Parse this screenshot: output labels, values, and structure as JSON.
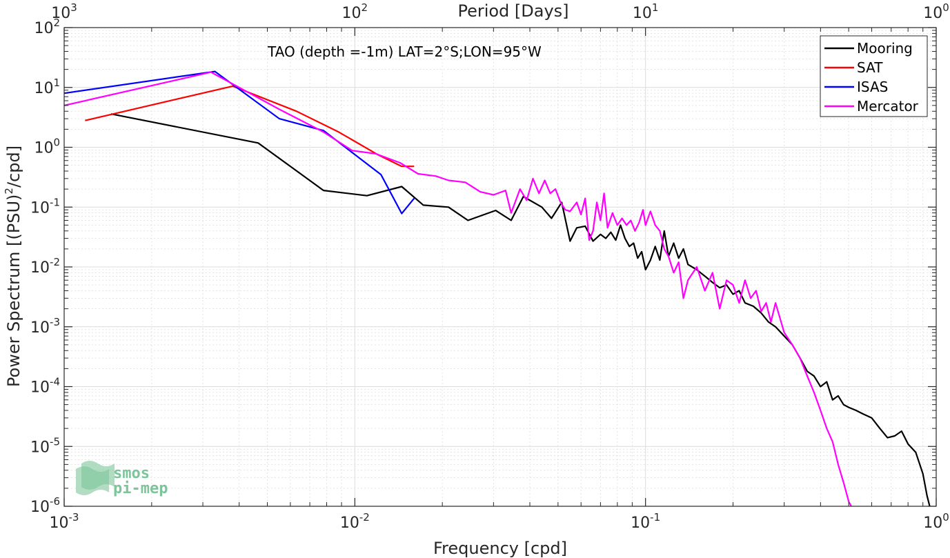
{
  "chart_data": {
    "type": "line",
    "x_scale": "log",
    "y_scale": "log",
    "xlim": [
      0.001,
      1
    ],
    "ylim": [
      1e-06,
      100
    ],
    "grid": true,
    "xlabel": "Frequency [cpd]",
    "ylabel": "Power Spectrum [(PSU)",
    "ylabel_sup": "2",
    "ylabel_tail": "/cpd]",
    "top_axis_label": "Period [Days]",
    "annotation": "TAO (depth =-1m) LAT=2°S;LON=95°W",
    "legend_position": "top-right",
    "x_ticks": [
      {
        "value": 0.001,
        "base": "10",
        "exp": "-3"
      },
      {
        "value": 0.01,
        "base": "10",
        "exp": "-2"
      },
      {
        "value": 0.1,
        "base": "10",
        "exp": "-1"
      },
      {
        "value": 1,
        "base": "10",
        "exp": "0"
      }
    ],
    "y_ticks": [
      {
        "value": 1e-06,
        "base": "10",
        "exp": "-6"
      },
      {
        "value": 1e-05,
        "base": "10",
        "exp": "-5"
      },
      {
        "value": 0.0001,
        "base": "10",
        "exp": "-4"
      },
      {
        "value": 0.001,
        "base": "10",
        "exp": "-3"
      },
      {
        "value": 0.01,
        "base": "10",
        "exp": "-2"
      },
      {
        "value": 0.1,
        "base": "10",
        "exp": "-1"
      },
      {
        "value": 1,
        "base": "10",
        "exp": "0"
      },
      {
        "value": 10,
        "base": "10",
        "exp": "1"
      },
      {
        "value": 100,
        "base": "10",
        "exp": "2"
      }
    ],
    "top_ticks": [
      {
        "value": 0.001,
        "base": "10",
        "exp": "3"
      },
      {
        "value": 0.01,
        "base": "10",
        "exp": "2"
      },
      {
        "value": 0.1,
        "base": "10",
        "exp": "1"
      },
      {
        "value": 1,
        "base": "10",
        "exp": "0"
      }
    ],
    "series": [
      {
        "name": "Mooring",
        "color": "#000000",
        "points": [
          [
            0.00145,
            3.6
          ],
          [
            0.00465,
            1.18
          ],
          [
            0.0078,
            0.19
          ],
          [
            0.011,
            0.155
          ],
          [
            0.0145,
            0.22
          ],
          [
            0.0172,
            0.108
          ],
          [
            0.021,
            0.1
          ],
          [
            0.0245,
            0.06
          ],
          [
            0.0305,
            0.088
          ],
          [
            0.0345,
            0.06
          ],
          [
            0.038,
            0.15
          ],
          [
            0.044,
            0.1
          ],
          [
            0.0475,
            0.065
          ],
          [
            0.0515,
            0.12
          ],
          [
            0.055,
            0.027
          ],
          [
            0.058,
            0.045
          ],
          [
            0.062,
            0.048
          ],
          [
            0.066,
            0.027
          ],
          [
            0.07,
            0.035
          ],
          [
            0.073,
            0.03
          ],
          [
            0.076,
            0.038
          ],
          [
            0.079,
            0.028
          ],
          [
            0.082,
            0.05
          ],
          [
            0.085,
            0.03
          ],
          [
            0.088,
            0.022
          ],
          [
            0.091,
            0.025
          ],
          [
            0.094,
            0.014
          ],
          [
            0.097,
            0.018
          ],
          [
            0.1,
            0.009
          ],
          [
            0.104,
            0.013
          ],
          [
            0.108,
            0.022
          ],
          [
            0.112,
            0.013
          ],
          [
            0.116,
            0.04
          ],
          [
            0.12,
            0.015
          ],
          [
            0.125,
            0.025
          ],
          [
            0.13,
            0.014
          ],
          [
            0.135,
            0.02
          ],
          [
            0.14,
            0.011
          ],
          [
            0.15,
            0.009
          ],
          [
            0.16,
            0.007
          ],
          [
            0.17,
            0.0055
          ],
          [
            0.18,
            0.0045
          ],
          [
            0.19,
            0.005
          ],
          [
            0.2,
            0.0035
          ],
          [
            0.21,
            0.004
          ],
          [
            0.22,
            0.0025
          ],
          [
            0.235,
            0.0022
          ],
          [
            0.25,
            0.0017
          ],
          [
            0.265,
            0.0012
          ],
          [
            0.28,
            0.001
          ],
          [
            0.3,
            0.0007
          ],
          [
            0.32,
            0.0005
          ],
          [
            0.34,
            0.0003
          ],
          [
            0.36,
            0.00018
          ],
          [
            0.38,
            0.00015
          ],
          [
            0.4,
            0.0001
          ],
          [
            0.42,
            0.00012
          ],
          [
            0.44,
            6e-05
          ],
          [
            0.46,
            7e-05
          ],
          [
            0.48,
            5e-05
          ],
          [
            0.5,
            4.5e-05
          ],
          [
            0.53,
            4e-05
          ],
          [
            0.56,
            3.5e-05
          ],
          [
            0.6,
            3e-05
          ],
          [
            0.64,
            2e-05
          ],
          [
            0.68,
            1.4e-05
          ],
          [
            0.72,
            1.5e-05
          ],
          [
            0.76,
            1.8e-05
          ],
          [
            0.8,
            1.1e-05
          ],
          [
            0.85,
            8e-06
          ],
          [
            0.9,
            3.5e-06
          ],
          [
            0.93,
            1.5e-06
          ],
          [
            0.95,
            1e-06
          ]
        ]
      },
      {
        "name": "SAT",
        "color": "#ff0000",
        "points": [
          [
            0.00118,
            2.8
          ],
          [
            0.0038,
            10.5
          ],
          [
            0.0063,
            4.0
          ],
          [
            0.0088,
            1.8
          ],
          [
            0.012,
            0.75
          ],
          [
            0.0145,
            0.48
          ],
          [
            0.016,
            0.48
          ]
        ]
      },
      {
        "name": "ISAS",
        "color": "#0000ff",
        "points": [
          [
            0.001,
            8.0
          ],
          [
            0.0033,
            18.5
          ],
          [
            0.0055,
            3.0
          ],
          [
            0.0078,
            1.9
          ],
          [
            0.0123,
            0.35
          ],
          [
            0.0145,
            0.078
          ],
          [
            0.016,
            0.14
          ]
        ]
      },
      {
        "name": "Mercator",
        "color": "#ff00ff",
        "points": [
          [
            0.001,
            5.0
          ],
          [
            0.0032,
            18.0
          ],
          [
            0.0055,
            4.3
          ],
          [
            0.0078,
            1.8
          ],
          [
            0.0098,
            0.88
          ],
          [
            0.0118,
            0.78
          ],
          [
            0.0143,
            0.55
          ],
          [
            0.0165,
            0.36
          ],
          [
            0.019,
            0.33
          ],
          [
            0.021,
            0.28
          ],
          [
            0.024,
            0.26
          ],
          [
            0.027,
            0.18
          ],
          [
            0.03,
            0.16
          ],
          [
            0.033,
            0.19
          ],
          [
            0.0345,
            0.08
          ],
          [
            0.037,
            0.2
          ],
          [
            0.039,
            0.13
          ],
          [
            0.041,
            0.3
          ],
          [
            0.043,
            0.17
          ],
          [
            0.045,
            0.28
          ],
          [
            0.047,
            0.17
          ],
          [
            0.049,
            0.2
          ],
          [
            0.051,
            0.12
          ],
          [
            0.053,
            0.09
          ],
          [
            0.055,
            0.085
          ],
          [
            0.058,
            0.12
          ],
          [
            0.06,
            0.075
          ],
          [
            0.062,
            0.14
          ],
          [
            0.064,
            0.028
          ],
          [
            0.066,
            0.04
          ],
          [
            0.068,
            0.12
          ],
          [
            0.07,
            0.06
          ],
          [
            0.072,
            0.17
          ],
          [
            0.074,
            0.045
          ],
          [
            0.077,
            0.08
          ],
          [
            0.08,
            0.05
          ],
          [
            0.083,
            0.065
          ],
          [
            0.086,
            0.05
          ],
          [
            0.089,
            0.06
          ],
          [
            0.092,
            0.04
          ],
          [
            0.095,
            0.055
          ],
          [
            0.098,
            0.09
          ],
          [
            0.1,
            0.05
          ],
          [
            0.104,
            0.085
          ],
          [
            0.108,
            0.05
          ],
          [
            0.112,
            0.04
          ],
          [
            0.116,
            0.02
          ],
          [
            0.12,
            0.015
          ],
          [
            0.125,
            0.008
          ],
          [
            0.13,
            0.012
          ],
          [
            0.135,
            0.003
          ],
          [
            0.14,
            0.006
          ],
          [
            0.15,
            0.01
          ],
          [
            0.16,
            0.004
          ],
          [
            0.17,
            0.008
          ],
          [
            0.18,
            0.002
          ],
          [
            0.19,
            0.006
          ],
          [
            0.2,
            0.005
          ],
          [
            0.21,
            0.0025
          ],
          [
            0.22,
            0.006
          ],
          [
            0.23,
            0.003
          ],
          [
            0.24,
            0.004
          ],
          [
            0.25,
            0.0018
          ],
          [
            0.26,
            0.0025
          ],
          [
            0.27,
            0.0012
          ],
          [
            0.28,
            0.0025
          ],
          [
            0.3,
            0.0008
          ],
          [
            0.32,
            0.0005
          ],
          [
            0.34,
            0.0003
          ],
          [
            0.36,
            0.00015
          ],
          [
            0.38,
            8e-05
          ],
          [
            0.4,
            4e-05
          ],
          [
            0.42,
            2e-05
          ],
          [
            0.44,
            1.2e-05
          ],
          [
            0.46,
            5e-06
          ],
          [
            0.48,
            2.5e-06
          ],
          [
            0.5,
            1.2e-06
          ],
          [
            0.51,
            1e-06
          ]
        ]
      }
    ]
  },
  "logo": {
    "line1": "smos",
    "line2": "pi-mep"
  },
  "colors": {
    "grid": "#dcdcdc",
    "axis": "#262626",
    "logo": "#7cc49a"
  }
}
